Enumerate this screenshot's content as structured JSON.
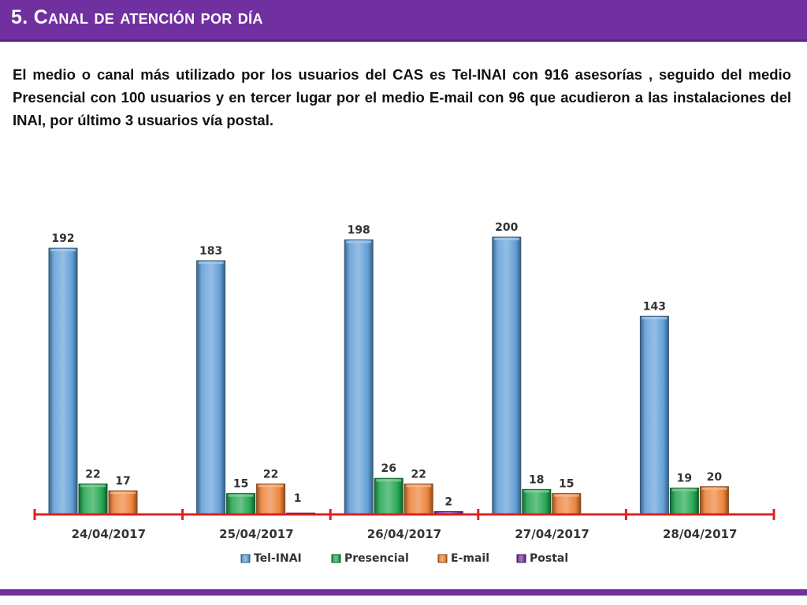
{
  "slide": {
    "title": "5. Canal de atención por día",
    "body": "El medio o canal más utilizado por los usuarios del CAS es Tel-INAI con 916 asesorías , seguido del medio Presencial con 100 usuarios y en tercer lugar por el medio E-mail con 96 que acudieron a las instalaciones del INAI, por último 3 usuarios vía postal."
  },
  "colors": {
    "header": "#7030a0",
    "axis": "#e02020",
    "Tel-INAI": "#5b9bd5",
    "Presencial": "#1aa34a",
    "E-mail": "#ed7d31",
    "Postal": "#7030a0"
  },
  "chart_data": {
    "type": "bar",
    "categories": [
      "24/04/2017",
      "25/04/2017",
      "26/04/2017",
      "27/04/2017",
      "28/04/2017"
    ],
    "series": [
      {
        "name": "Tel-INAI",
        "values": [
          192,
          183,
          198,
          200,
          143
        ]
      },
      {
        "name": "Presencial",
        "values": [
          22,
          15,
          26,
          18,
          19
        ]
      },
      {
        "name": "E-mail",
        "values": [
          17,
          22,
          22,
          15,
          20
        ]
      },
      {
        "name": "Postal",
        "values": [
          null,
          1,
          2,
          null,
          null
        ]
      }
    ],
    "data_labels": true,
    "legend_position": "bottom",
    "grid": false,
    "ylim": [
      0,
      200
    ]
  }
}
